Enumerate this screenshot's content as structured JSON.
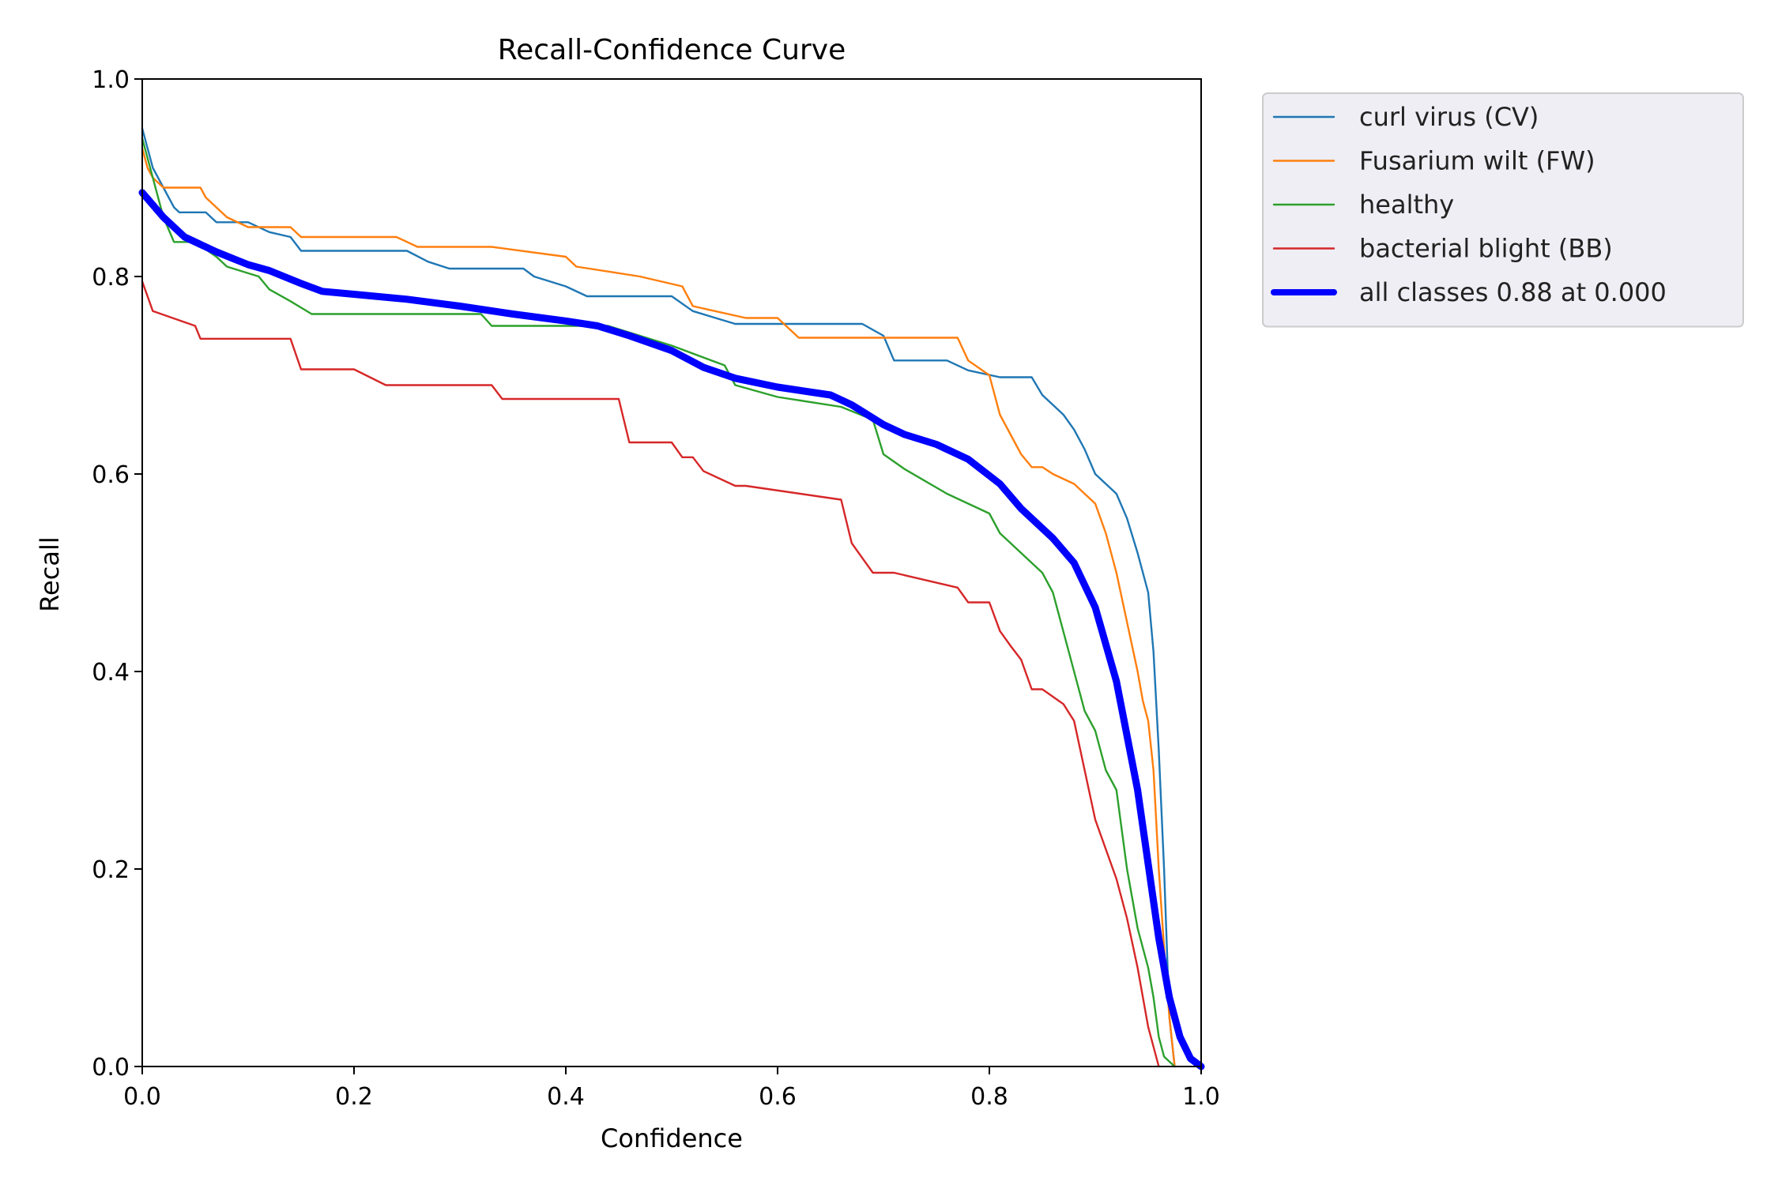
{
  "chart_data": {
    "type": "line",
    "title": "Recall-Confidence Curve",
    "xlabel": "Confidence",
    "ylabel": "Recall",
    "xlim": [
      0,
      1
    ],
    "ylim": [
      0,
      1
    ],
    "xticks": [
      "0.0",
      "0.2",
      "0.4",
      "0.6",
      "0.8",
      "1.0"
    ],
    "yticks": [
      "0.0",
      "0.2",
      "0.4",
      "0.6",
      "0.8",
      "1.0"
    ],
    "grid": false,
    "legend_position": "outside-top-right",
    "series": [
      {
        "name": "curl virus (CV)",
        "color": "#1f77b4",
        "width": "thin",
        "x": [
          0,
          0.005,
          0.01,
          0.015,
          0.02,
          0.025,
          0.03,
          0.035,
          0.06,
          0.07,
          0.1,
          0.12,
          0.14,
          0.15,
          0.25,
          0.27,
          0.29,
          0.36,
          0.37,
          0.4,
          0.42,
          0.45,
          0.5,
          0.52,
          0.56,
          0.68,
          0.7,
          0.71,
          0.76,
          0.78,
          0.81,
          0.84,
          0.85,
          0.86,
          0.87,
          0.88,
          0.89,
          0.9,
          0.91,
          0.92,
          0.93,
          0.94,
          0.95,
          0.955,
          0.96,
          0.965,
          0.97,
          0.975
        ],
        "y": [
          0.95,
          0.93,
          0.91,
          0.9,
          0.89,
          0.88,
          0.87,
          0.865,
          0.865,
          0.855,
          0.855,
          0.845,
          0.84,
          0.826,
          0.826,
          0.815,
          0.808,
          0.808,
          0.8,
          0.79,
          0.78,
          0.78,
          0.78,
          0.765,
          0.752,
          0.752,
          0.74,
          0.715,
          0.715,
          0.705,
          0.698,
          0.698,
          0.68,
          0.67,
          0.66,
          0.645,
          0.625,
          0.6,
          0.59,
          0.58,
          0.555,
          0.52,
          0.48,
          0.42,
          0.32,
          0.2,
          0.05,
          0
        ]
      },
      {
        "name": "Fusarium wilt (FW)",
        "color": "#ff7f0e",
        "width": "thin",
        "x": [
          0,
          0.005,
          0.01,
          0.02,
          0.055,
          0.06,
          0.07,
          0.08,
          0.1,
          0.14,
          0.15,
          0.24,
          0.26,
          0.33,
          0.4,
          0.41,
          0.44,
          0.47,
          0.51,
          0.52,
          0.57,
          0.6,
          0.62,
          0.7,
          0.77,
          0.78,
          0.8,
          0.81,
          0.82,
          0.83,
          0.84,
          0.85,
          0.86,
          0.88,
          0.9,
          0.91,
          0.92,
          0.93,
          0.94,
          0.945,
          0.95,
          0.955,
          0.96,
          0.965,
          0.97,
          0.975
        ],
        "y": [
          0.93,
          0.91,
          0.9,
          0.89,
          0.89,
          0.88,
          0.87,
          0.86,
          0.85,
          0.85,
          0.84,
          0.84,
          0.83,
          0.83,
          0.82,
          0.81,
          0.805,
          0.8,
          0.79,
          0.77,
          0.758,
          0.758,
          0.738,
          0.738,
          0.738,
          0.715,
          0.7,
          0.66,
          0.64,
          0.62,
          0.607,
          0.607,
          0.6,
          0.59,
          0.57,
          0.54,
          0.5,
          0.45,
          0.4,
          0.37,
          0.35,
          0.3,
          0.2,
          0.12,
          0.05,
          0
        ]
      },
      {
        "name": "healthy",
        "color": "#2ca02c",
        "width": "thin",
        "x": [
          0,
          0.01,
          0.02,
          0.03,
          0.05,
          0.07,
          0.08,
          0.11,
          0.12,
          0.14,
          0.16,
          0.32,
          0.33,
          0.44,
          0.5,
          0.55,
          0.56,
          0.6,
          0.66,
          0.69,
          0.7,
          0.72,
          0.76,
          0.78,
          0.8,
          0.81,
          0.83,
          0.85,
          0.86,
          0.87,
          0.88,
          0.89,
          0.9,
          0.91,
          0.92,
          0.93,
          0.94,
          0.95,
          0.955,
          0.96,
          0.965,
          0.97,
          0.975
        ],
        "y": [
          0.94,
          0.9,
          0.86,
          0.835,
          0.835,
          0.82,
          0.81,
          0.8,
          0.787,
          0.775,
          0.762,
          0.762,
          0.75,
          0.75,
          0.73,
          0.71,
          0.69,
          0.678,
          0.668,
          0.655,
          0.62,
          0.605,
          0.58,
          0.57,
          0.56,
          0.54,
          0.52,
          0.5,
          0.48,
          0.44,
          0.4,
          0.36,
          0.34,
          0.3,
          0.28,
          0.2,
          0.14,
          0.1,
          0.07,
          0.03,
          0.01,
          0.005,
          0
        ]
      },
      {
        "name": "bacterial blight (BB)",
        "color": "#d62728",
        "width": "thin",
        "x": [
          0,
          0.01,
          0.05,
          0.055,
          0.14,
          0.15,
          0.2,
          0.23,
          0.33,
          0.34,
          0.45,
          0.46,
          0.5,
          0.51,
          0.52,
          0.53,
          0.56,
          0.57,
          0.66,
          0.67,
          0.68,
          0.69,
          0.71,
          0.77,
          0.78,
          0.8,
          0.81,
          0.82,
          0.83,
          0.84,
          0.85,
          0.87,
          0.88,
          0.89,
          0.9,
          0.91,
          0.92,
          0.93,
          0.94,
          0.945,
          0.95,
          0.955,
          0.96
        ],
        "y": [
          0.795,
          0.765,
          0.75,
          0.737,
          0.737,
          0.706,
          0.706,
          0.69,
          0.69,
          0.676,
          0.676,
          0.632,
          0.632,
          0.617,
          0.617,
          0.603,
          0.588,
          0.588,
          0.574,
          0.53,
          0.515,
          0.5,
          0.5,
          0.485,
          0.47,
          0.47,
          0.441,
          0.426,
          0.412,
          0.382,
          0.382,
          0.367,
          0.35,
          0.3,
          0.25,
          0.22,
          0.19,
          0.15,
          0.1,
          0.07,
          0.04,
          0.02,
          0
        ]
      },
      {
        "name": "all classes 0.88 at 0.000",
        "color": "#0000ff",
        "width": "thick",
        "x": [
          0,
          0.02,
          0.04,
          0.07,
          0.1,
          0.12,
          0.15,
          0.17,
          0.2,
          0.25,
          0.3,
          0.35,
          0.4,
          0.43,
          0.46,
          0.5,
          0.53,
          0.56,
          0.6,
          0.65,
          0.67,
          0.7,
          0.72,
          0.75,
          0.78,
          0.81,
          0.83,
          0.86,
          0.88,
          0.9,
          0.92,
          0.94,
          0.96,
          0.97,
          0.98,
          0.99,
          1.0
        ],
        "y": [
          0.885,
          0.86,
          0.84,
          0.825,
          0.812,
          0.806,
          0.793,
          0.785,
          0.782,
          0.777,
          0.77,
          0.762,
          0.755,
          0.75,
          0.74,
          0.725,
          0.708,
          0.697,
          0.688,
          0.68,
          0.67,
          0.65,
          0.64,
          0.63,
          0.615,
          0.59,
          0.565,
          0.535,
          0.51,
          0.465,
          0.39,
          0.28,
          0.13,
          0.07,
          0.03,
          0.008,
          0
        ]
      }
    ]
  }
}
